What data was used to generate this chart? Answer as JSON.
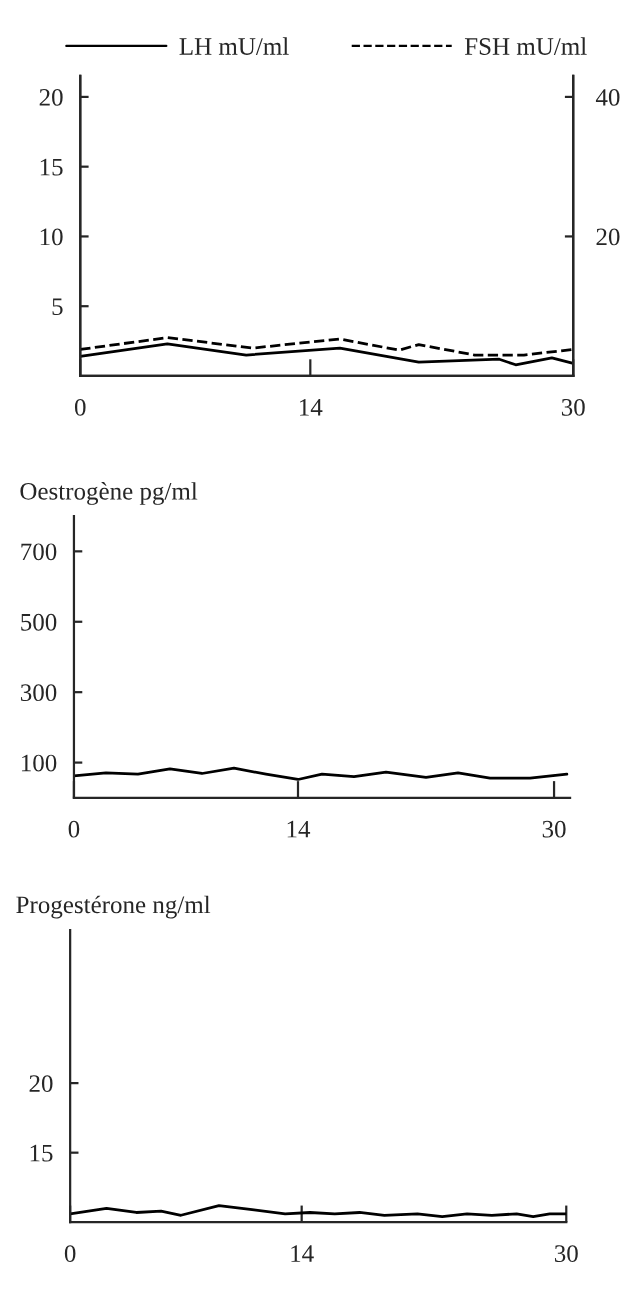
{
  "chart_data": [
    {
      "type": "line",
      "x": [
        0,
        5.3,
        10.1,
        15.8,
        20.6,
        25.5,
        26.5,
        28.7,
        30
      ],
      "xlim": [
        0,
        30
      ],
      "xticks": [
        0,
        14,
        30
      ],
      "ylim": [
        0,
        21.5
      ],
      "yticks": [
        5,
        10,
        15,
        20
      ],
      "y2lim": [
        0,
        43
      ],
      "y2ticks": [
        20,
        40
      ],
      "grid": false,
      "legend": "top",
      "series": [
        {
          "name": "LH mU/ml",
          "color": "#000000",
          "line_style": "solid",
          "values": [
            1.4,
            2.3,
            1.5,
            2.0,
            1.0,
            1.2,
            0.8,
            1.3,
            0.9
          ]
        },
        {
          "name": "FSH mU/ml",
          "color": "#000000",
          "line_style": "dashed",
          "axis": "y2",
          "x": [
            0,
            5.3,
            10.5,
            15.8,
            19.4,
            20.6,
            24,
            27,
            30
          ],
          "values": [
            3.8,
            5.5,
            4.0,
            5.3,
            3.7,
            4.5,
            3.0,
            3.0,
            3.8
          ]
        }
      ]
    },
    {
      "type": "line",
      "ylabel": "Oestrogène pg/ml",
      "x": [
        0,
        2,
        4,
        6,
        8,
        10,
        12,
        14,
        15.5,
        17.5,
        19.5,
        22,
        24,
        26,
        28.5,
        30.8
      ],
      "xlim": [
        0,
        31
      ],
      "xticks": [
        0,
        14,
        30
      ],
      "ylim": [
        0,
        800
      ],
      "yticks": [
        100,
        300,
        500,
        700
      ],
      "grid": false,
      "series": [
        {
          "color": "#000000",
          "line_style": "solid",
          "values": [
            62,
            71,
            67,
            82,
            69,
            84,
            67,
            52,
            67,
            60,
            73,
            58,
            71,
            56,
            56,
            67
          ]
        }
      ]
    },
    {
      "type": "line",
      "ylabel": "Progestérone ng/ml",
      "x": [
        0,
        2.2,
        4,
        5.5,
        6.7,
        9,
        11,
        13,
        14.5,
        16,
        17.5,
        19,
        21,
        22.5,
        24,
        25.5,
        27,
        28,
        29,
        30
      ],
      "xlim": [
        0,
        30
      ],
      "xticks": [
        0,
        14,
        30
      ],
      "ylim": [
        10,
        31
      ],
      "yticks": [
        15,
        20
      ],
      "grid": false,
      "series": [
        {
          "color": "#000000",
          "line_style": "solid",
          "values": [
            10.6,
            11.0,
            10.7,
            10.8,
            10.5,
            11.2,
            10.9,
            10.6,
            10.7,
            10.6,
            10.7,
            10.5,
            10.6,
            10.4,
            10.6,
            10.5,
            10.6,
            10.4,
            10.6,
            10.6
          ]
        }
      ]
    }
  ]
}
